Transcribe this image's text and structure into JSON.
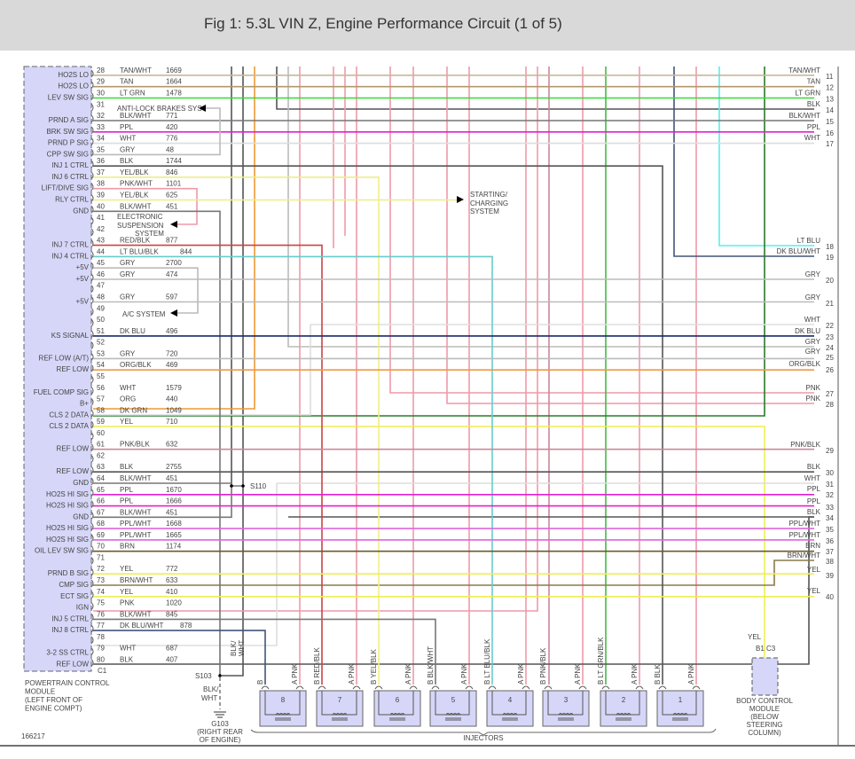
{
  "header": {
    "title": "Fig 1: 5.3L VIN Z, Engine Performance Circuit (1 of 5)"
  },
  "wire_colors": {
    "TAN/WHT": "#c8b89a",
    "TAN": "#b09a6e",
    "LT GRN": "#33dd33",
    "BLK": "#555555",
    "BLK/WHT": "#777777",
    "PPL": "#e020d0",
    "WHT": "#dddddd",
    "GRY": "#bbbbbb",
    "YEL/BLK": "#eeee88",
    "PNK/WHT": "#ee99aa",
    "YEL": "#eeee55",
    "RED/BLK": "#cc4444",
    "LT BLU/BLK": "#66cccc",
    "DK BLU": "#1a2a6a",
    "ORG/BLK": "#ee9944",
    "ORG": "#ee9933",
    "DK GRN": "#2a7a2a",
    "PNK/BLK": "#cc8899",
    "PNK": "#ee99aa",
    "PPL/WHT": "#dd66dd",
    "BRN": "#6b5a2a",
    "BRN/WHT": "#8a7a4a",
    "DK BLU/WHT": "#445577",
    "LT BLU": "#55eeee",
    "LT GRN/BLK": "#44bb44"
  },
  "pcm": {
    "connector": "C1",
    "name": [
      "POWERTRAIN CONTROL",
      "MODULE",
      "(LEFT FRONT OF",
      "ENGINE COMPT)"
    ],
    "pins": [
      {
        "pin": "28",
        "label": "HO2S LO",
        "color": "TAN/WHT",
        "circuit": "1669"
      },
      {
        "pin": "29",
        "label": "HO2S LO",
        "color": "TAN",
        "circuit": "1664"
      },
      {
        "pin": "30",
        "label": "LEV SW SIG",
        "color": "LT GRN",
        "circuit": "1478"
      },
      {
        "pin": "31",
        "label": "",
        "color": "",
        "circuit": ""
      },
      {
        "pin": "32",
        "label": "PRND A SIG",
        "color": "BLK/WHT",
        "circuit": "771"
      },
      {
        "pin": "33",
        "label": "BRK SW SIG",
        "color": "PPL",
        "circuit": "420"
      },
      {
        "pin": "34",
        "label": "PRND P SIG",
        "color": "WHT",
        "circuit": "776"
      },
      {
        "pin": "35",
        "label": "CPP SW SIG",
        "color": "GRY",
        "circuit": "48"
      },
      {
        "pin": "36",
        "label": "INJ 1 CTRL",
        "color": "BLK",
        "circuit": "1744"
      },
      {
        "pin": "37",
        "label": "INJ 6 CTRL",
        "color": "YEL/BLK",
        "circuit": "846"
      },
      {
        "pin": "38",
        "label": "LIFT/DIVE SIG",
        "color": "PNK/WHT",
        "circuit": "1101"
      },
      {
        "pin": "39",
        "label": "RLY CTRL",
        "color": "YEL/BLK",
        "circuit": "625"
      },
      {
        "pin": "40",
        "label": "GND",
        "color": "BLK/WHT",
        "circuit": "451"
      },
      {
        "pin": "41",
        "label": "",
        "color": "",
        "circuit": ""
      },
      {
        "pin": "42",
        "label": "",
        "color": "",
        "circuit": ""
      },
      {
        "pin": "43",
        "label": "INJ 7 CTRL",
        "color": "RED/BLK",
        "circuit": "877"
      },
      {
        "pin": "44",
        "label": "INJ 4 CTRL",
        "color": "LT BLU/BLK",
        "circuit": "844"
      },
      {
        "pin": "45",
        "label": "+5V",
        "color": "GRY",
        "circuit": "2700"
      },
      {
        "pin": "46",
        "label": "+5V",
        "color": "GRY",
        "circuit": "474"
      },
      {
        "pin": "47",
        "label": "",
        "color": "",
        "circuit": ""
      },
      {
        "pin": "48",
        "label": "+5V",
        "color": "GRY",
        "circuit": "597"
      },
      {
        "pin": "49",
        "label": "",
        "color": "",
        "circuit": ""
      },
      {
        "pin": "50",
        "label": "",
        "color": "",
        "circuit": ""
      },
      {
        "pin": "51",
        "label": "KS SIGNAL",
        "color": "DK BLU",
        "circuit": "496"
      },
      {
        "pin": "52",
        "label": "",
        "color": "",
        "circuit": ""
      },
      {
        "pin": "53",
        "label": "REF LOW (A/T)",
        "color": "GRY",
        "circuit": "720"
      },
      {
        "pin": "54",
        "label": "REF LOW",
        "color": "ORG/BLK",
        "circuit": "469"
      },
      {
        "pin": "55",
        "label": "",
        "color": "",
        "circuit": ""
      },
      {
        "pin": "56",
        "label": "FUEL COMP SIG",
        "color": "WHT",
        "circuit": "1579"
      },
      {
        "pin": "57",
        "label": "B+",
        "color": "ORG",
        "circuit": "440"
      },
      {
        "pin": "58",
        "label": "CLS 2 DATA",
        "color": "DK GRN",
        "circuit": "1049"
      },
      {
        "pin": "59",
        "label": "CLS 2 DATA",
        "color": "YEL",
        "circuit": "710"
      },
      {
        "pin": "60",
        "label": "",
        "color": "",
        "circuit": ""
      },
      {
        "pin": "61",
        "label": "REF LOW",
        "color": "PNK/BLK",
        "circuit": "632"
      },
      {
        "pin": "62",
        "label": "",
        "color": "",
        "circuit": ""
      },
      {
        "pin": "63",
        "label": "REF LOW",
        "color": "BLK",
        "circuit": "2755"
      },
      {
        "pin": "64",
        "label": "GND",
        "color": "BLK/WHT",
        "circuit": "451"
      },
      {
        "pin": "65",
        "label": "HO2S HI SIG",
        "color": "PPL",
        "circuit": "1670"
      },
      {
        "pin": "66",
        "label": "HO2S HI SIG",
        "color": "PPL",
        "circuit": "1666"
      },
      {
        "pin": "67",
        "label": "GND",
        "color": "BLK/WHT",
        "circuit": "451"
      },
      {
        "pin": "68",
        "label": "HO2S HI SIG",
        "color": "PPL/WHT",
        "circuit": "1668"
      },
      {
        "pin": "69",
        "label": "HO2S HI SIG",
        "color": "PPL/WHT",
        "circuit": "1665"
      },
      {
        "pin": "70",
        "label": "OIL LEV SW SIG",
        "color": "BRN",
        "circuit": "1174"
      },
      {
        "pin": "71",
        "label": "",
        "color": "",
        "circuit": ""
      },
      {
        "pin": "72",
        "label": "PRND B SIG",
        "color": "YEL",
        "circuit": "772"
      },
      {
        "pin": "73",
        "label": "CMP SIG",
        "color": "BRN/WHT",
        "circuit": "633"
      },
      {
        "pin": "74",
        "label": "ECT SIG",
        "color": "YEL",
        "circuit": "410"
      },
      {
        "pin": "75",
        "label": "IGN",
        "color": "PNK",
        "circuit": "1020"
      },
      {
        "pin": "76",
        "label": "INJ 5 CTRL",
        "color": "BLK/WHT",
        "circuit": "845"
      },
      {
        "pin": "77",
        "label": "INJ 8 CTRL",
        "color": "DK BLU/WHT",
        "circuit": "878"
      },
      {
        "pin": "78",
        "label": "",
        "color": "",
        "circuit": ""
      },
      {
        "pin": "79",
        "label": "3-2 SS CTRL",
        "color": "WHT",
        "circuit": "687"
      },
      {
        "pin": "80",
        "label": "REF LOW",
        "color": "BLK",
        "circuit": "407"
      }
    ]
  },
  "right_terminals": [
    {
      "num": "11",
      "color": "TAN/WHT"
    },
    {
      "num": "12",
      "color": "TAN"
    },
    {
      "num": "13",
      "color": "LT GRN"
    },
    {
      "num": "14",
      "color": "BLK"
    },
    {
      "num": "15",
      "color": "BLK/WHT"
    },
    {
      "num": "16",
      "color": "PPL"
    },
    {
      "num": "17",
      "color": "WHT"
    },
    {
      "num": "18",
      "color": "LT BLU"
    },
    {
      "num": "19",
      "color": "DK BLU/WHT"
    },
    {
      "num": "20",
      "color": "GRY"
    },
    {
      "num": "21",
      "color": "GRY"
    },
    {
      "num": "22",
      "color": "WHT"
    },
    {
      "num": "23",
      "color": "DK BLU"
    },
    {
      "num": "24",
      "color": "GRY"
    },
    {
      "num": "25",
      "color": "GRY"
    },
    {
      "num": "26",
      "color": "ORG/BLK"
    },
    {
      "num": "27",
      "color": "PNK"
    },
    {
      "num": "28",
      "color": "PNK"
    },
    {
      "num": "29",
      "color": "PNK/BLK"
    },
    {
      "num": "30",
      "color": "BLK"
    },
    {
      "num": "31",
      "color": "WHT"
    },
    {
      "num": "32",
      "color": "PPL"
    },
    {
      "num": "33",
      "color": "PPL"
    },
    {
      "num": "34",
      "color": "BLK"
    },
    {
      "num": "35",
      "color": "PPL/WHT"
    },
    {
      "num": "36",
      "color": "PPL/WHT"
    },
    {
      "num": "37",
      "color": "BRN"
    },
    {
      "num": "38",
      "color": "BRN/WHT"
    },
    {
      "num": "39",
      "color": "YEL"
    },
    {
      "num": "40",
      "color": "YEL"
    }
  ],
  "annotations": {
    "abs": "ANTI-LOCK BRAKES SYS",
    "suspension": [
      "ELECTRONIC",
      "SUSPENSION",
      "SYSTEM"
    ],
    "ac": "A/C SYSTEM",
    "starting": [
      "STARTING/",
      "CHARGING",
      "SYSTEM"
    ],
    "s110": "S110",
    "s103": "S103",
    "ground_wire_vertical": [
      "BLK/",
      "WHT"
    ],
    "ground_wire": [
      "BLK/",
      "WHT"
    ],
    "g103": [
      "G103",
      "(RIGHT REAR",
      "OF ENGINE)"
    ],
    "figure_number": "166217",
    "injectors_label": "INJECTORS"
  },
  "injectors": [
    {
      "num": "8",
      "b": "B",
      "a": "A PNK"
    },
    {
      "num": "7",
      "b": "B RED/BLK",
      "a": "A PNK"
    },
    {
      "num": "6",
      "b": "B YEL/BLK",
      "a": "A PNK"
    },
    {
      "num": "5",
      "b": "B BLK/WHT",
      "a": "A PNK"
    },
    {
      "num": "4",
      "b": "B LT BLU/BLK",
      "a": "A PNK"
    },
    {
      "num": "3",
      "b": "B PNK/BLK",
      "a": "A PNK"
    },
    {
      "num": "2",
      "b": "B LT GRN/BLK",
      "a": "A PNK"
    },
    {
      "num": "1",
      "b": "B BLK",
      "a": "A PNK"
    }
  ],
  "bcm": {
    "wire": "YEL",
    "pins": "B1 C3",
    "name": [
      "BODY CONTROL",
      "MODULE",
      "(BELOW",
      "STEERING",
      "COLUMN)"
    ]
  }
}
